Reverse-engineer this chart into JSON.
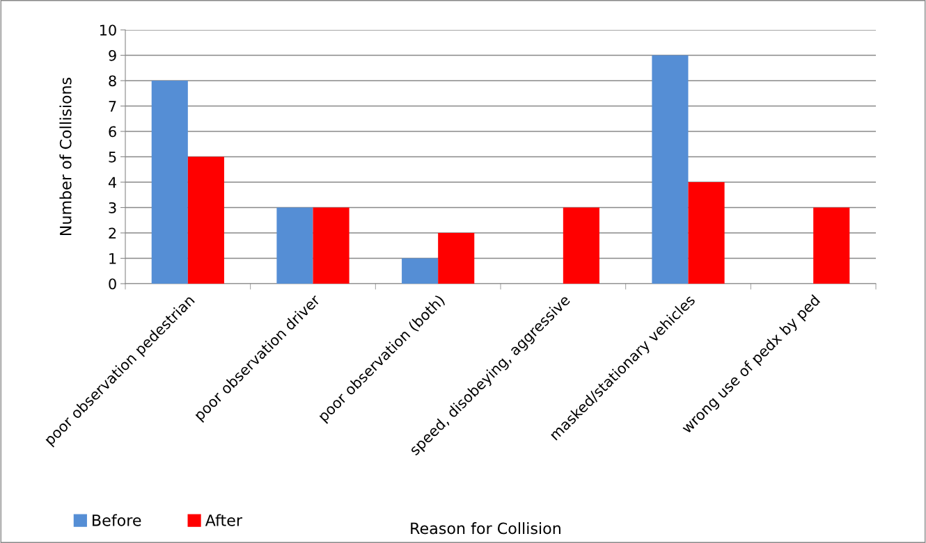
{
  "chart_data": {
    "type": "bar",
    "xlabel": "Reason for Collision",
    "ylabel": "Number of Collisions",
    "categories": [
      "poor observation pedestrian",
      "poor observation driver",
      "poor observation (both)",
      "speed, disobeying, aggressive",
      "masked/stationary vehicles",
      "wrong use of pedx by ped"
    ],
    "series": [
      {
        "name": "Before",
        "color": "#558ed5",
        "values": [
          8,
          3,
          1,
          0,
          9,
          0
        ]
      },
      {
        "name": "After",
        "color": "#ff0000",
        "values": [
          5,
          3,
          2,
          3,
          4,
          3
        ]
      }
    ],
    "ylim": [
      0,
      10
    ],
    "yticks": [
      0,
      1,
      2,
      3,
      4,
      5,
      6,
      7,
      8,
      9,
      10
    ],
    "grid": "y",
    "legend": "bottom left"
  }
}
